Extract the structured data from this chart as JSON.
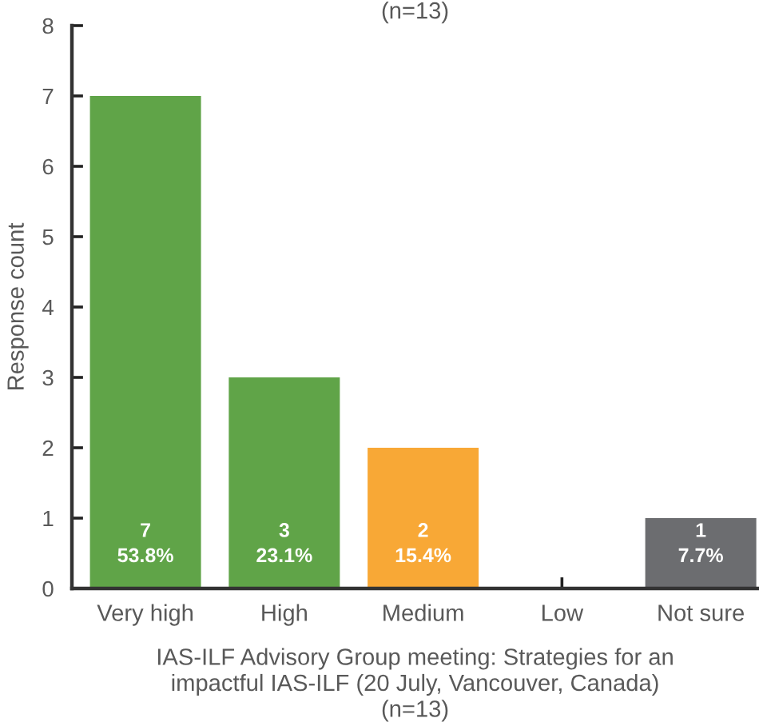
{
  "chart_data": {
    "type": "bar",
    "categories": [
      "Very high",
      "High",
      "Medium",
      "Low",
      "Not sure"
    ],
    "values": [
      7,
      3,
      2,
      0,
      1
    ],
    "colors": [
      "#60a448",
      "#60a448",
      "#f8a836",
      null,
      "#6c6d70"
    ],
    "value_labels": [
      "7\n53.8%",
      "3\n23.1%",
      "2\n15.4%",
      null,
      "1\n7.7%"
    ],
    "ylabel": "Response count",
    "xlabel": "IAS-ILF Advisory Group meeting: Strategies for an\nimpactful IAS-ILF (20 July, Vancouver, Canada)\n(n=13)",
    "annotations": [
      "(n=13)"
    ],
    "ylim": [
      0,
      8
    ],
    "yticks": [
      0,
      1,
      2,
      3,
      4,
      5,
      6,
      7,
      8
    ],
    "grid": false,
    "legend": false
  }
}
